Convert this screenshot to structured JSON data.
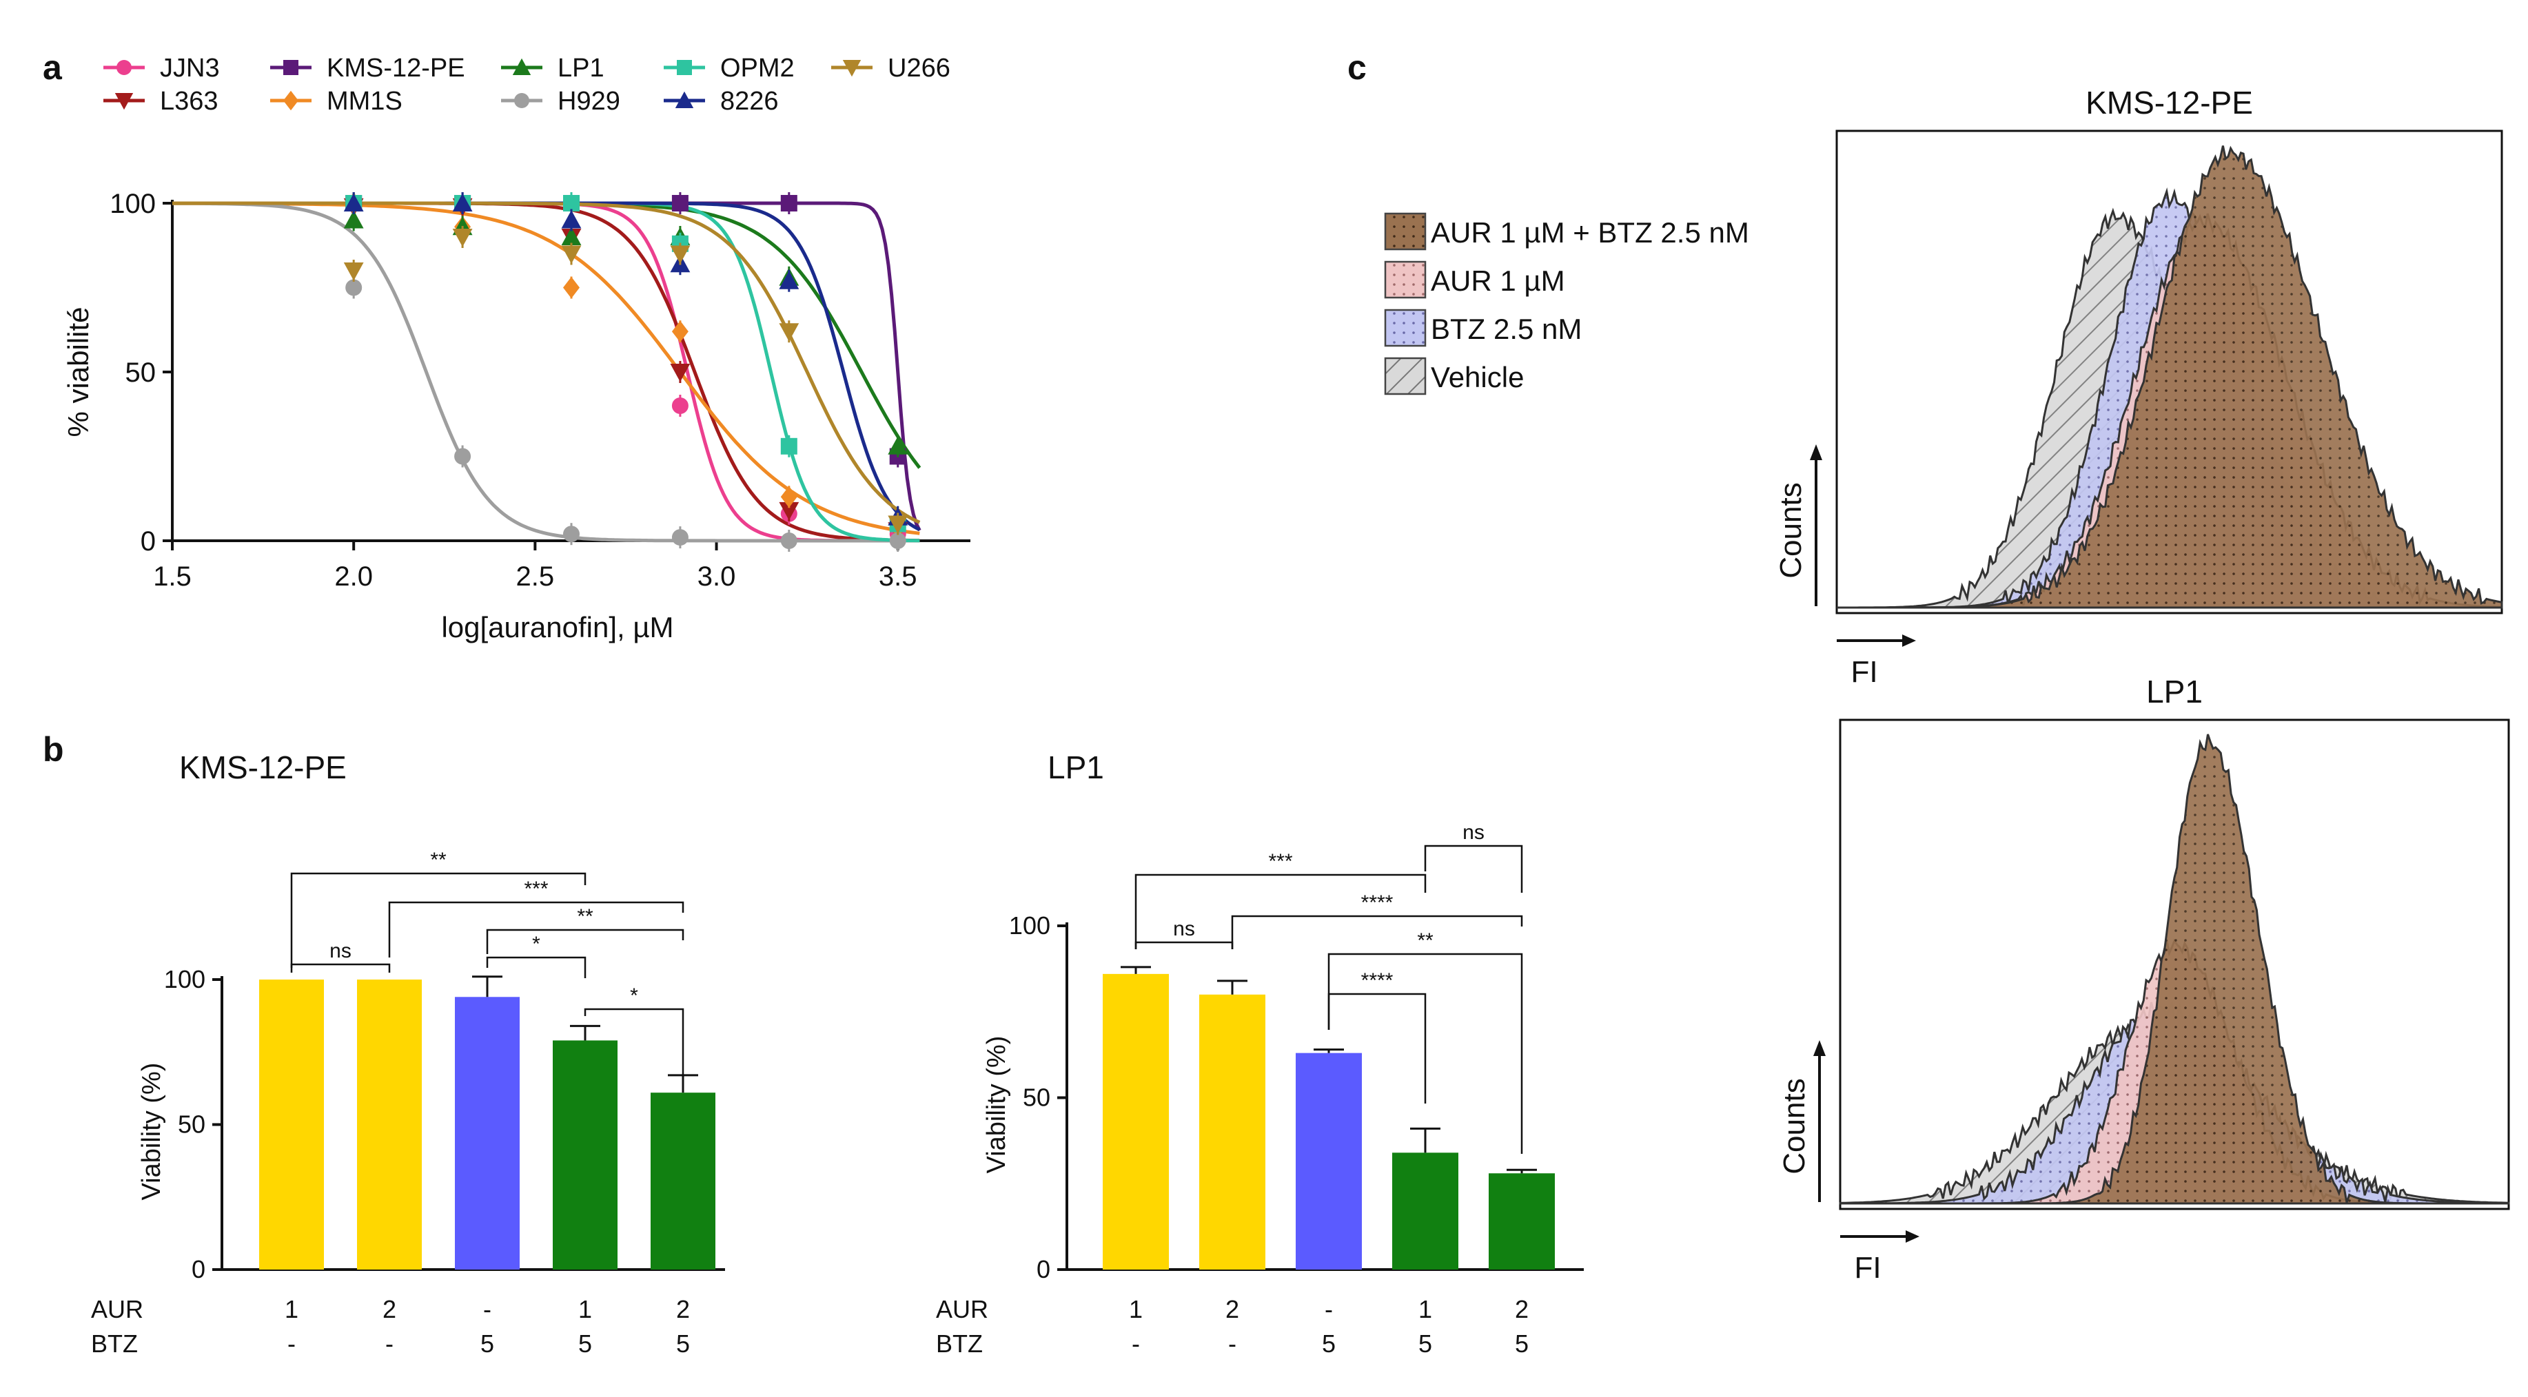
{
  "panel_labels": {
    "a": "a",
    "b": "b",
    "c": "c"
  },
  "chart_data": [
    {
      "type": "line",
      "panel": "a",
      "xlabel": "log[auranofin], µM",
      "ylabel": "% viabilité",
      "xlim": [
        1.5,
        3.7
      ],
      "ylim": [
        0,
        100
      ],
      "x_ticks": [
        "1.5",
        "2.0",
        "2.5",
        "3.0",
        "3.5"
      ],
      "y_ticks": [
        "0",
        "50",
        "100"
      ],
      "x": [
        2.0,
        2.3,
        2.6,
        2.9,
        3.2,
        3.5
      ],
      "series": [
        {
          "name": "JJN3",
          "marker": "circle",
          "color": "#ec3f8e",
          "ec50": 2.92,
          "hill": 8,
          "values": [
            100,
            100,
            100,
            40,
            8,
            2
          ]
        },
        {
          "name": "L363",
          "marker": "triangle-down",
          "color": "#a31b1b",
          "ec50": 2.94,
          "hill": 5,
          "values": [
            99,
            99,
            90,
            50,
            9,
            3
          ]
        },
        {
          "name": "KMS-12-PE",
          "marker": "square",
          "color": "#5b1a78",
          "ec50": 3.5,
          "hill": 25,
          "values": [
            100,
            100,
            100,
            100,
            100,
            25
          ]
        },
        {
          "name": "MM1S",
          "marker": "diamond",
          "color": "#f08a24",
          "ec50": 2.9,
          "hill": 2.5,
          "values": [
            100,
            93,
            75,
            62,
            13,
            4
          ]
        },
        {
          "name": "LP1",
          "marker": "triangle-up",
          "color": "#1c7a1c",
          "ec50": 3.4,
          "hill": 3.5,
          "values": [
            95,
            93,
            90,
            90,
            78,
            28
          ]
        },
        {
          "name": "H929",
          "marker": "circle",
          "color": "#9e9e9e",
          "ec50": 2.2,
          "hill": 5,
          "values": [
            75,
            25,
            2,
            1,
            0,
            0
          ]
        },
        {
          "name": "OPM2",
          "marker": "square",
          "color": "#2ec4a0",
          "ec50": 3.15,
          "hill": 8,
          "values": [
            100,
            100,
            100,
            88,
            28,
            5
          ]
        },
        {
          "name": "8226",
          "marker": "triangle-up",
          "color": "#1a2a8c",
          "ec50": 3.35,
          "hill": 7,
          "values": [
            100,
            100,
            95,
            82,
            77,
            7
          ]
        },
        {
          "name": "U266",
          "marker": "triangle-down",
          "color": "#b0862a",
          "ec50": 3.25,
          "hill": 4,
          "values": [
            80,
            90,
            85,
            85,
            62,
            5
          ]
        }
      ]
    },
    {
      "type": "bar",
      "panel": "b",
      "title": "KMS-12-PE",
      "ylabel": "Viability (%)",
      "ylim": [
        0,
        100
      ],
      "y_ticks": [
        "0",
        "50",
        "100"
      ],
      "row_labels": [
        "AUR",
        "BTZ"
      ],
      "categories": [
        {
          "aur": "1",
          "btz": "-"
        },
        {
          "aur": "2",
          "btz": "-"
        },
        {
          "aur": "-",
          "btz": "5"
        },
        {
          "aur": "1",
          "btz": "5"
        },
        {
          "aur": "2",
          "btz": "5"
        }
      ],
      "values": [
        100,
        100,
        94,
        79,
        61
      ],
      "errors": [
        0,
        0,
        7,
        5,
        6
      ],
      "colors": [
        "#ffd700",
        "#ffd700",
        "#5b5bff",
        "#118011",
        "#118011"
      ],
      "comparisons": [
        {
          "from": 0,
          "to": 3,
          "label": "**"
        },
        {
          "from": 1,
          "to": 4,
          "label": "***"
        },
        {
          "from": 2,
          "to": 4,
          "label": "**"
        },
        {
          "from": 2,
          "to": 3,
          "label": "*"
        },
        {
          "from": 3,
          "to": 4,
          "label": "*"
        },
        {
          "from": 0,
          "to": 1,
          "label": "ns"
        }
      ]
    },
    {
      "type": "bar",
      "panel": "b",
      "title": "LP1",
      "ylabel": "Viability (%)",
      "ylim": [
        0,
        100
      ],
      "y_ticks": [
        "0",
        "50",
        "100"
      ],
      "row_labels": [
        "AUR",
        "BTZ"
      ],
      "categories": [
        {
          "aur": "1",
          "btz": "-"
        },
        {
          "aur": "2",
          "btz": "-"
        },
        {
          "aur": "-",
          "btz": "5"
        },
        {
          "aur": "1",
          "btz": "5"
        },
        {
          "aur": "2",
          "btz": "5"
        }
      ],
      "values": [
        86,
        80,
        63,
        34,
        28
      ],
      "errors": [
        2,
        4,
        1,
        7,
        1
      ],
      "colors": [
        "#ffd700",
        "#ffd700",
        "#5b5bff",
        "#118011",
        "#118011"
      ],
      "comparisons": [
        {
          "from": 3,
          "to": 4,
          "label": "ns"
        },
        {
          "from": 0,
          "to": 3,
          "label": "***"
        },
        {
          "from": 1,
          "to": 4,
          "label": "****"
        },
        {
          "from": 2,
          "to": 4,
          "label": "**"
        },
        {
          "from": 2,
          "to": 3,
          "label": "****"
        },
        {
          "from": 0,
          "to": 1,
          "label": "ns"
        }
      ]
    },
    {
      "type": "area",
      "panel": "c",
      "title": "KMS-12-PE",
      "xlabel": "FI",
      "ylabel": "Counts",
      "series": [
        {
          "name": "Vehicle",
          "color": "#c9c9c9",
          "center": 0.42,
          "width": 0.09,
          "peak": 0.86
        },
        {
          "name": "BTZ 2.5 nM",
          "color": "#c2c6f2",
          "center": 0.5,
          "width": 0.09,
          "peak": 0.9
        },
        {
          "name": "AUR 1 µM",
          "color": "#efc4c4",
          "center": 0.55,
          "width": 0.1,
          "peak": 0.85
        },
        {
          "name": "AUR 1 µM + BTZ 2.5 nM",
          "color": "#9a7250",
          "center": 0.59,
          "width": 0.11,
          "peak": 1.0
        }
      ]
    },
    {
      "type": "area",
      "panel": "c",
      "title": "LP1",
      "xlabel": "FI",
      "ylabel": "Counts",
      "series": [
        {
          "name": "Vehicle",
          "color": "#c9c9c9",
          "center": 0.45,
          "width": 0.13,
          "peak": 0.38
        },
        {
          "name": "BTZ 2.5 nM",
          "color": "#c2c6f2",
          "center": 0.48,
          "width": 0.11,
          "peak": 0.42
        },
        {
          "name": "AUR 1 µM",
          "color": "#efc4c4",
          "center": 0.5,
          "width": 0.07,
          "peak": 0.56
        },
        {
          "name": "AUR 1 µM + BTZ 2.5 nM",
          "color": "#9a7250",
          "center": 0.55,
          "width": 0.06,
          "peak": 1.0
        }
      ]
    }
  ],
  "hist_legend": [
    "AUR 1 µM + BTZ 2.5 nM",
    "AUR 1 µM",
    "BTZ 2.5 nM",
    "Vehicle"
  ]
}
